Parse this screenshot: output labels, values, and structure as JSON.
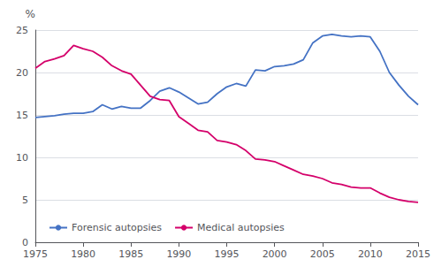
{
  "chart_data": {
    "type": "line",
    "ylabel": "%",
    "x": [
      1975,
      1976,
      1977,
      1978,
      1979,
      1980,
      1981,
      1982,
      1983,
      1984,
      1985,
      1986,
      1987,
      1988,
      1989,
      1990,
      1991,
      1992,
      1993,
      1994,
      1995,
      1996,
      1997,
      1998,
      1999,
      2000,
      2001,
      2002,
      2003,
      2004,
      2005,
      2006,
      2007,
      2008,
      2009,
      2010,
      2011,
      2012,
      2013,
      2014,
      2015
    ],
    "series": [
      {
        "name": "Forensic autopsies",
        "color": "#4472C4",
        "values": [
          14.7,
          14.8,
          14.9,
          15.1,
          15.2,
          15.2,
          15.4,
          16.2,
          15.7,
          16.0,
          15.8,
          15.8,
          16.7,
          17.8,
          18.2,
          17.7,
          17.0,
          16.3,
          16.5,
          17.5,
          18.3,
          18.7,
          18.4,
          20.3,
          20.2,
          20.7,
          20.8,
          21.0,
          21.5,
          23.5,
          24.3,
          24.5,
          24.3,
          24.2,
          24.3,
          24.2,
          22.5,
          20.0,
          18.5,
          17.2,
          16.2
        ]
      },
      {
        "name": "Medical autopsies",
        "color": "#D4006A",
        "values": [
          20.5,
          21.3,
          21.6,
          22.0,
          23.2,
          22.8,
          22.5,
          21.8,
          20.8,
          20.2,
          19.8,
          18.5,
          17.2,
          16.8,
          16.7,
          14.8,
          14.0,
          13.2,
          13.0,
          12.0,
          11.8,
          11.5,
          10.8,
          9.8,
          9.7,
          9.5,
          9.0,
          8.5,
          8.0,
          7.8,
          7.5,
          7.0,
          6.8,
          6.5,
          6.4,
          6.4,
          5.8,
          5.3,
          5.0,
          4.8,
          4.7
        ]
      }
    ],
    "xlim": [
      1975,
      2015
    ],
    "xticks": [
      1975,
      1980,
      1985,
      1990,
      1995,
      2000,
      2005,
      2010,
      2015
    ],
    "ylim": [
      0,
      25
    ],
    "yticks": [
      0,
      5,
      10,
      15,
      20,
      25
    ],
    "grid": true,
    "legend": "lower left"
  }
}
